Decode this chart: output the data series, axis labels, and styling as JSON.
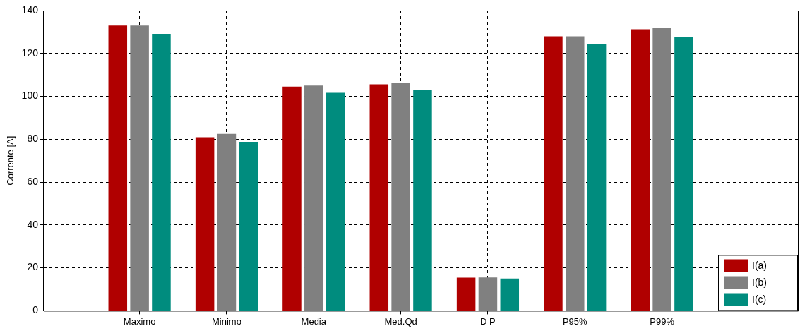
{
  "chart_data": {
    "type": "bar",
    "ylabel": "Corrente [A]",
    "categories": [
      "Maximo",
      "Minimo",
      "Media",
      "Med.Qd",
      "D P",
      "P95%",
      "P99%"
    ],
    "series": [
      {
        "name": "I(a)",
        "color": "#b00000",
        "values": [
          133,
          80.9,
          104.5,
          105.6,
          15.4,
          128,
          131.3
        ]
      },
      {
        "name": "I(b)",
        "color": "#808080",
        "values": [
          133,
          82.5,
          105,
          106.3,
          15.5,
          128,
          131.8
        ]
      },
      {
        "name": "I(c)",
        "color": "#008c7e",
        "values": [
          129.1,
          78.8,
          101.7,
          102.8,
          15,
          124.3,
          127.5
        ]
      }
    ],
    "ylim": [
      0,
      140
    ],
    "yticks": [
      0,
      20,
      40,
      60,
      80,
      100,
      120,
      140
    ],
    "grid": true,
    "legend": "bottom right"
  }
}
